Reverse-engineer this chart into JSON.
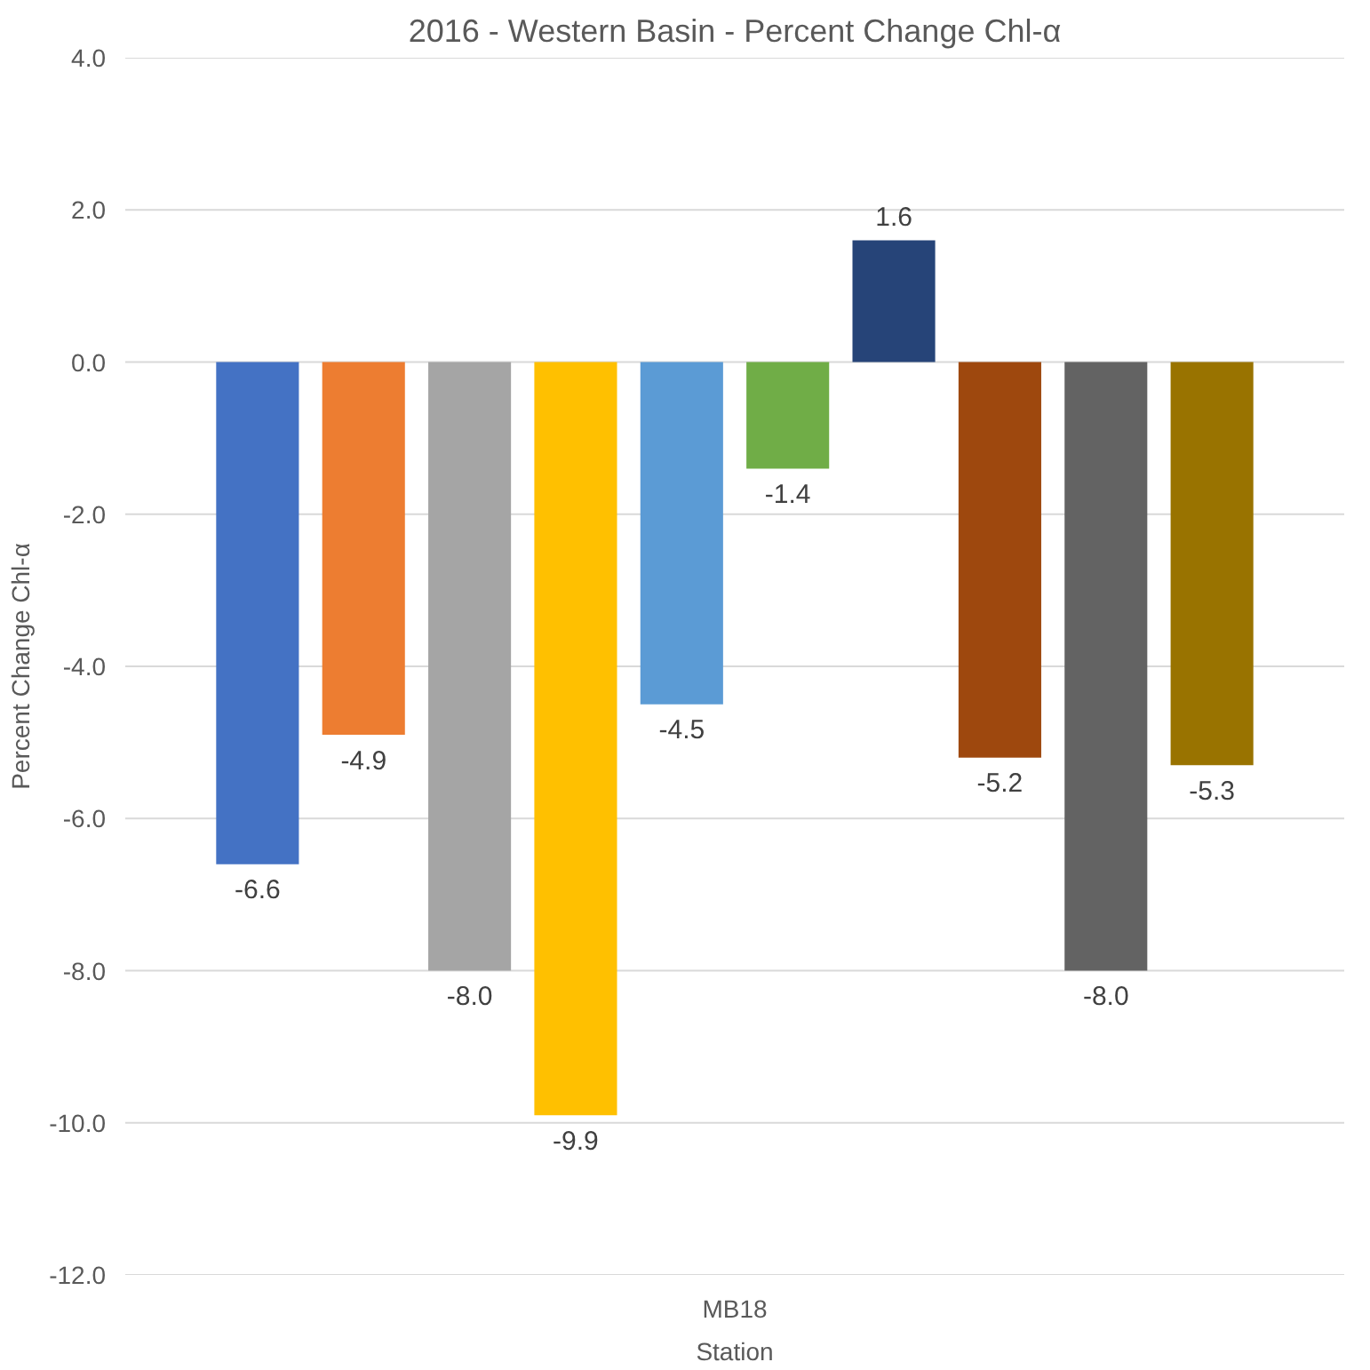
{
  "chart_data": {
    "type": "bar",
    "title": "2016 - Western Basin - Percent Change Chl-α",
    "xlabel": "Station",
    "ylabel": "Percent Change Chl-α",
    "categories": [
      "MB18"
    ],
    "series": [
      {
        "color": "#4472c4",
        "values": [
          -6.6
        ],
        "value_labels": [
          "-6.6"
        ]
      },
      {
        "color": "#ed7d31",
        "values": [
          -4.9
        ],
        "value_labels": [
          "-4.9"
        ]
      },
      {
        "color": "#a5a5a5",
        "values": [
          -8.0
        ],
        "value_labels": [
          "-8.0"
        ]
      },
      {
        "color": "#ffc000",
        "values": [
          -9.9
        ],
        "value_labels": [
          "-9.9"
        ]
      },
      {
        "color": "#5b9bd5",
        "values": [
          -4.5
        ],
        "value_labels": [
          "-4.5"
        ]
      },
      {
        "color": "#70ad47",
        "values": [
          -1.4
        ],
        "value_labels": [
          "-1.4"
        ]
      },
      {
        "color": "#264478",
        "values": [
          1.6
        ],
        "value_labels": [
          "1.6"
        ]
      },
      {
        "color": "#9e480e",
        "values": [
          -5.2
        ],
        "value_labels": [
          "-5.2"
        ]
      },
      {
        "color": "#636363",
        "values": [
          -8.0
        ],
        "value_labels": [
          "-8.0"
        ]
      },
      {
        "color": "#997300",
        "values": [
          -5.3
        ],
        "value_labels": [
          "-5.3"
        ]
      }
    ],
    "ylim": [
      -12,
      4
    ],
    "yticks": [
      {
        "value": -12,
        "label": "-12.0"
      },
      {
        "value": -10,
        "label": "-10.0"
      },
      {
        "value": -8,
        "label": "-8.0"
      },
      {
        "value": -6,
        "label": "-6.0"
      },
      {
        "value": -4,
        "label": "-4.0"
      },
      {
        "value": -2,
        "label": "-2.0"
      },
      {
        "value": 0,
        "label": "0.0"
      },
      {
        "value": 2,
        "label": "2.0"
      },
      {
        "value": 4,
        "label": "4.0"
      }
    ],
    "grid": "y"
  }
}
